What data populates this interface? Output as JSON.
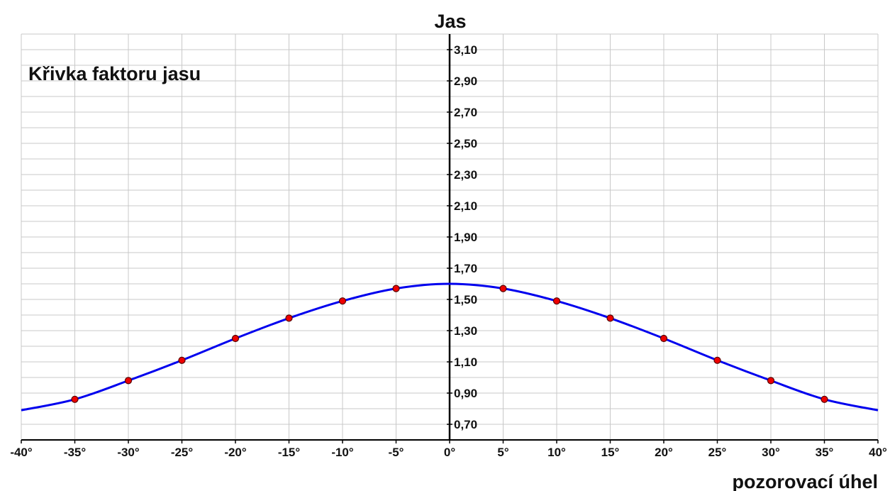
{
  "chart_data": {
    "type": "line",
    "title": "Křivka faktoru jasu",
    "xlabel": "pozorovací úhel",
    "ylabel": "Jas",
    "xlim": [
      -40,
      40
    ],
    "ylim": [
      0.6,
      3.2
    ],
    "x_ticks": [
      -40,
      -35,
      -30,
      -25,
      -20,
      -15,
      -10,
      -5,
      0,
      5,
      10,
      15,
      20,
      25,
      30,
      35,
      40
    ],
    "x_tick_labels": [
      "-40°",
      "-35°",
      "-30°",
      "-25°",
      "-20°",
      "-15°",
      "-10°",
      "-5°",
      "0°",
      "5°",
      "10°",
      "15°",
      "20°",
      "25°",
      "30°",
      "35°",
      "40°"
    ],
    "y_ticks": [
      0.7,
      0.9,
      1.1,
      1.3,
      1.5,
      1.7,
      1.9,
      2.1,
      2.3,
      2.5,
      2.7,
      2.9,
      3.1
    ],
    "y_tick_labels": [
      "0,70",
      "0,90",
      "1,10",
      "1,30",
      "1,50",
      "1,70",
      "1,90",
      "2,10",
      "2,30",
      "2,50",
      "2,70",
      "2,90",
      "3,10"
    ],
    "grid": true,
    "series": [
      {
        "x": [
          -40,
          -35,
          -30,
          -25,
          -20,
          -15,
          -10,
          -5,
          0,
          5,
          10,
          15,
          20,
          25,
          30,
          35,
          40
        ],
        "y": [
          0.79,
          0.86,
          0.98,
          1.11,
          1.25,
          1.38,
          1.49,
          1.57,
          1.6,
          1.57,
          1.49,
          1.38,
          1.25,
          1.11,
          0.98,
          0.86,
          0.79
        ],
        "markers": [
          -35,
          -30,
          -25,
          -20,
          -15,
          -10,
          -5,
          5,
          10,
          15,
          20,
          25,
          30,
          35
        ]
      }
    ],
    "colors": {
      "line": "#0000ee",
      "marker_fill": "#ee0000",
      "marker_stroke": "#550000",
      "grid": "#c8c8c8",
      "axis": "#000000"
    }
  }
}
